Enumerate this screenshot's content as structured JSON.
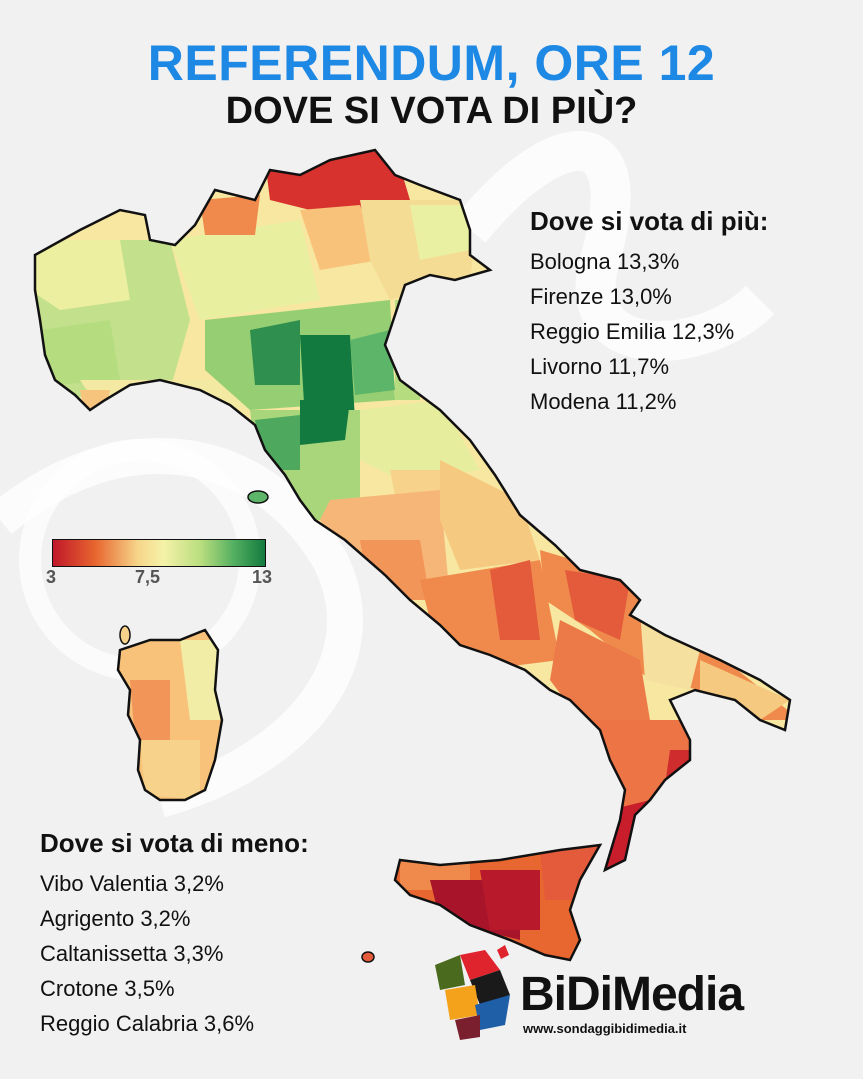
{
  "title": "REFERENDUM, ORE 12",
  "subtitle": "DOVE SI VOTA DI PIÙ?",
  "more_panel": {
    "heading": "Dove si vota di più:",
    "items": [
      {
        "province": "Bologna",
        "value": "13,3%"
      },
      {
        "province": "Firenze",
        "value": "13,0%"
      },
      {
        "province": "Reggio Emilia",
        "value": "12,3%"
      },
      {
        "province": "Livorno",
        "value": "11,7%"
      },
      {
        "province": "Modena",
        "value": "11,2%"
      }
    ]
  },
  "less_panel": {
    "heading": "Dove si vota di meno:",
    "items": [
      {
        "province": "Vibo Valentia",
        "value": "3,2%"
      },
      {
        "province": "Agrigento",
        "value": "3,2%"
      },
      {
        "province": "Caltanissetta",
        "value": "3,3%"
      },
      {
        "province": "Crotone",
        "value": "3,5%"
      },
      {
        "province": "Reggio Calabria",
        "value": "3,6%"
      }
    ]
  },
  "legend": {
    "min_label": "3",
    "mid_label": "7,5",
    "max_label": "13",
    "colors": [
      "#c0172a",
      "#e8662f",
      "#f6d58a",
      "#f5f2a8",
      "#b8dd7e",
      "#55b061",
      "#137a3f"
    ]
  },
  "logo": {
    "brand": "BiDiMedia",
    "website": "www.sondaggibidimedia.it"
  }
}
